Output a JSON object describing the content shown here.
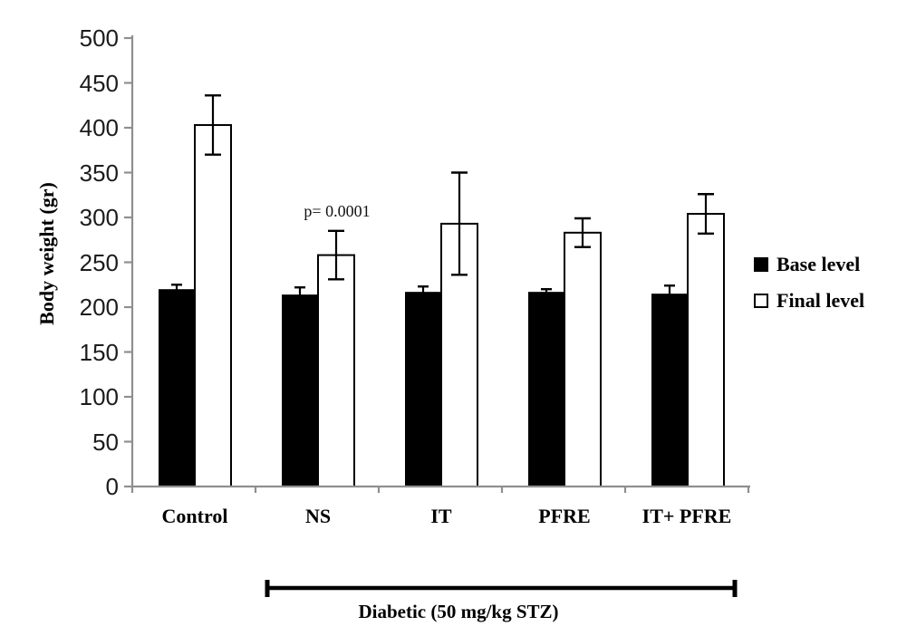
{
  "colors": {
    "axis": "#8F8F8F",
    "bar_stroke": "#000000",
    "error": "#000000",
    "bracket": "#000000",
    "text": "#000000"
  },
  "chart_data": {
    "type": "bar",
    "title": "",
    "ylabel": "Body weight (gr)",
    "xlabel": "",
    "ylim": [
      0,
      500
    ],
    "ytick_step": 50,
    "yticks": [
      500,
      450,
      400,
      350,
      300,
      250,
      200,
      150,
      100,
      50,
      0
    ],
    "grid": false,
    "legend_position": "right",
    "categories": [
      "Control",
      "NS",
      "IT",
      "PFRE",
      "IT+ PFRE"
    ],
    "series": [
      {
        "name": "Base level",
        "fill": "#000000",
        "values": [
          220,
          214,
          217,
          217,
          215
        ],
        "errors": [
          5,
          8,
          6,
          3,
          9
        ]
      },
      {
        "name": "Final level",
        "fill": "#FFFFFF",
        "values": [
          403,
          258,
          293,
          283,
          304
        ],
        "errors": [
          33,
          27,
          57,
          16,
          22
        ]
      }
    ],
    "annotation": {
      "text": "p= 0.0001",
      "applies_to": "NS Final level"
    },
    "group_bracket": {
      "label": "Diabetic (50 mg/kg STZ)",
      "from_category": "NS",
      "to_category": "IT+ PFRE"
    }
  }
}
